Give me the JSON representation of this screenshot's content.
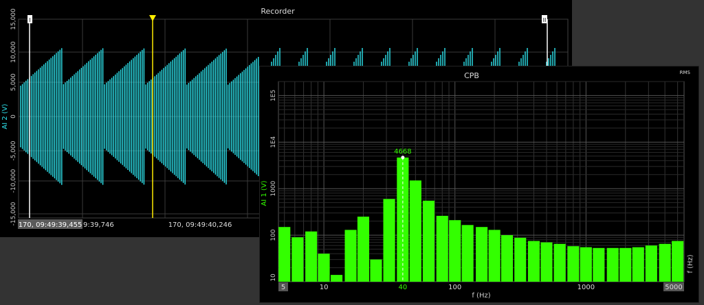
{
  "colors": {
    "background": "#333333",
    "panel": "#000000",
    "recorder_trace": "#2ee6f0",
    "cpb_bars": "#33ff00",
    "cursor_yellow": "#ffee00",
    "grid": "#3a3a3a",
    "label_white": "#ffffff",
    "label_green": "#33ff00"
  },
  "recorder": {
    "title": "Recorder",
    "ylabel": "AI 2 (V)",
    "yticks": [
      "15,000",
      "10,000",
      "5,000",
      "0",
      "-5,000",
      "-10,000",
      "-15,000"
    ],
    "cursor_left_label": "170, 09:49:39,455",
    "xtick_partial": "9:39,746",
    "xtick_center": "170, 09:49:40,246",
    "cursor_left_marker": "I",
    "cursor_right_marker": "II"
  },
  "chart_data": {
    "type": "bar",
    "title": "CPB",
    "corner_label": "RMS",
    "xlabel": "f (Hz)",
    "ylabel": "AI 1 (V)",
    "x_axis_right_label": "f (Hz)",
    "x_scale": "log",
    "y_scale": "log",
    "xlim": [
      4.5,
      5600
    ],
    "ylim": [
      10,
      200000
    ],
    "grid": true,
    "xticks": [
      "5",
      "10",
      "40",
      "100",
      "1000",
      "5000"
    ],
    "yticks": [
      "1E5",
      "1E4",
      "1000",
      "100",
      "10"
    ],
    "bar_freqs": [
      5,
      6.3,
      8,
      10,
      12.5,
      16,
      20,
      25,
      31.5,
      40,
      50,
      63,
      80,
      100,
      125,
      160,
      200,
      250,
      315,
      400,
      500,
      630,
      800,
      1000,
      1250,
      1600,
      2000,
      2500,
      3150,
      4000,
      5000
    ],
    "values": [
      150,
      90,
      120,
      40,
      14,
      130,
      250,
      30,
      600,
      4668,
      1500,
      550,
      260,
      210,
      165,
      150,
      130,
      100,
      88,
      75,
      70,
      65,
      58,
      55,
      53,
      53,
      53,
      55,
      60,
      65,
      75
    ],
    "marker_label": "4668",
    "marker_x": 40
  }
}
